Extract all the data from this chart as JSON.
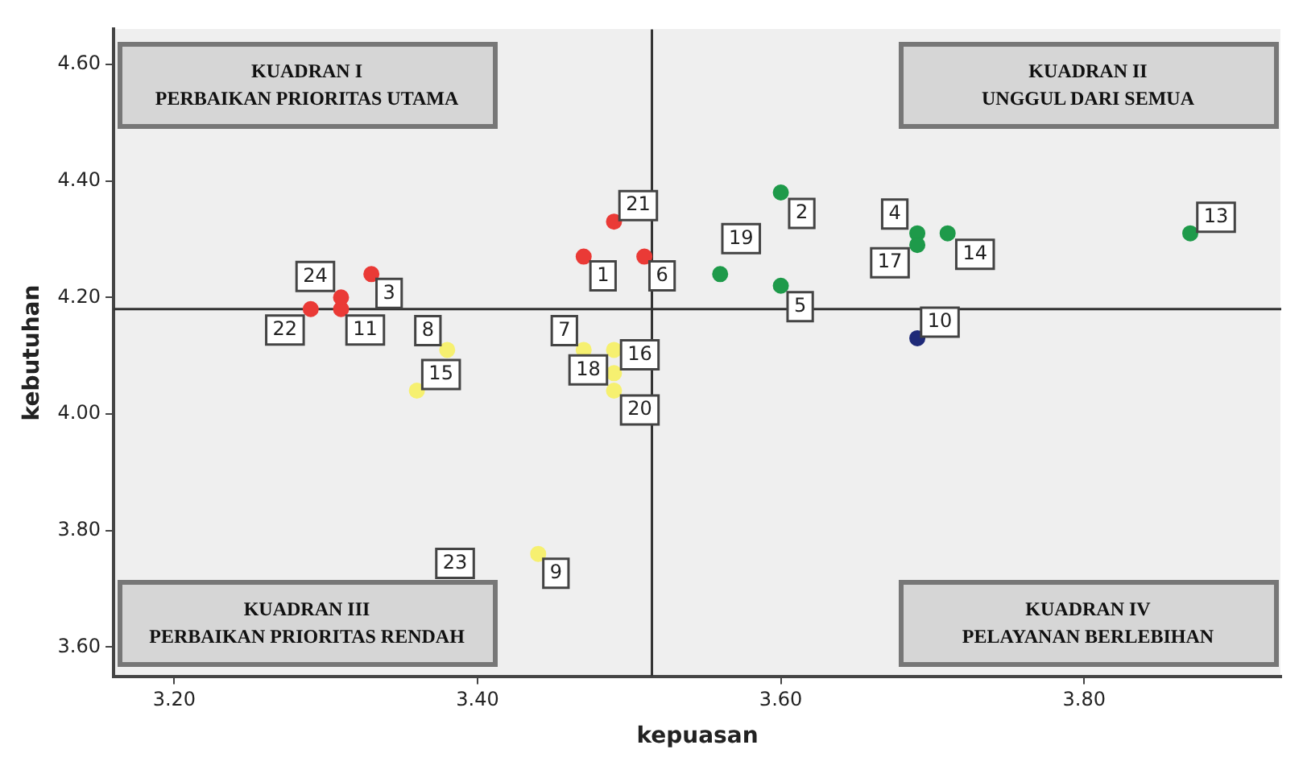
{
  "chart_data": {
    "type": "scatter",
    "xlabel": "kepuasan",
    "ylabel": "kebutuhan",
    "x": [
      3.47,
      3.6,
      3.33,
      3.69,
      3.6,
      3.51,
      3.47,
      3.38,
      3.44,
      3.69,
      3.31,
      3.87,
      3.71,
      3.36,
      3.49,
      3.69,
      3.49,
      3.56,
      3.49,
      3.49,
      3.29,
      3.31
    ],
    "values": [
      4.27,
      4.38,
      4.24,
      4.31,
      4.22,
      4.27,
      4.11,
      4.11,
      3.76,
      4.13,
      4.18,
      4.31,
      4.31,
      4.04,
      4.11,
      4.29,
      4.07,
      4.24,
      4.04,
      4.33,
      4.18,
      4.2
    ],
    "colors": [
      "#ea3a36",
      "#1e9a4a",
      "#ea3a36",
      "#1e9a4a",
      "#1e9a4a",
      "#ea3a36",
      "#f6f070",
      "#f6f070",
      "#f6f070",
      "#1f2a78",
      "#ea3a36",
      "#1e9a4a",
      "#1e9a4a",
      "#f6f070",
      "#f6f070",
      "#1e9a4a",
      "#f6f070",
      "#1e9a4a",
      "#f6f070",
      "#ea3a36",
      "#ea3a36",
      "#ea3a36"
    ],
    "marker": "circle",
    "grid": false,
    "legend": false,
    "xlim": [
      3.16,
      3.93
    ],
    "ylim": [
      3.55,
      4.66
    ],
    "xticks": [
      {
        "value": 3.2,
        "label": "3.20"
      },
      {
        "value": 3.4,
        "label": "3.40"
      },
      {
        "value": 3.6,
        "label": "3.60"
      },
      {
        "value": 3.8,
        "label": "3.80"
      }
    ],
    "yticks": [
      {
        "value": 3.6,
        "label": "3.60"
      },
      {
        "value": 3.8,
        "label": "3.80"
      },
      {
        "value": 4.0,
        "label": "4.00"
      },
      {
        "value": 4.2,
        "label": "4.20"
      },
      {
        "value": 4.4,
        "label": "4.40"
      },
      {
        "value": 4.6,
        "label": "4.60"
      }
    ],
    "ref_lines": [
      {
        "axis": "x",
        "value": 3.515,
        "color": "#333333"
      },
      {
        "axis": "y",
        "value": 4.18,
        "color": "#333333"
      }
    ],
    "annotations": [
      "KUADRAN I\nPERBAIKAN PRIORITAS UTAMA",
      "KUADRAN II\nUNGGUL DARI SEMUA",
      "KUADRAN III\nPERBAIKAN PRIORITAS RENDAH",
      "KUADRAN IV\nPELAYANAN BERLEBIHAN",
      "23",
      {
        "text": "1",
        "x": 3.47,
        "y": 4.27
      },
      {
        "text": "2",
        "x": 3.6,
        "y": 4.38
      },
      {
        "text": "3",
        "x": 3.33,
        "y": 4.24
      },
      {
        "text": "4",
        "x": 3.69,
        "y": 4.31
      },
      {
        "text": "5",
        "x": 3.6,
        "y": 4.22
      },
      {
        "text": "6",
        "x": 3.51,
        "y": 4.27
      },
      {
        "text": "7",
        "x": 3.47,
        "y": 4.11
      },
      {
        "text": "8",
        "x": 3.38,
        "y": 4.11
      },
      {
        "text": "9",
        "x": 3.44,
        "y": 3.76
      },
      {
        "text": "10",
        "x": 3.69,
        "y": 4.13
      },
      {
        "text": "11",
        "x": 3.31,
        "y": 4.18
      },
      {
        "text": "13",
        "x": 3.87,
        "y": 4.31
      },
      {
        "text": "14",
        "x": 3.71,
        "y": 4.31
      },
      {
        "text": "15",
        "x": 3.36,
        "y": 4.04
      },
      {
        "text": "16",
        "x": 3.49,
        "y": 4.11
      },
      {
        "text": "17",
        "x": 3.69,
        "y": 4.29
      },
      {
        "text": "18",
        "x": 3.49,
        "y": 4.07
      },
      {
        "text": "19",
        "x": 3.56,
        "y": 4.24
      },
      {
        "text": "20",
        "x": 3.49,
        "y": 4.04
      },
      {
        "text": "21",
        "x": 3.49,
        "y": 4.33
      },
      {
        "text": "22",
        "x": 3.29,
        "y": 4.18
      },
      {
        "text": "24",
        "x": 3.31,
        "y": 4.2
      }
    ]
  }
}
